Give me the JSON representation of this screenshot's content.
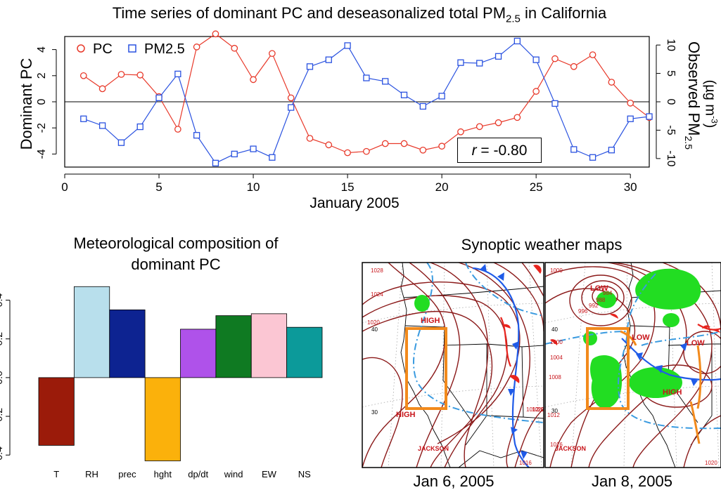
{
  "top_chart": {
    "title_main": "Time series of dominant PC and deseasonalized total PM",
    "title_sub": "2.5",
    "title_tail": " in California",
    "y_left_label": "Dominant PC",
    "y_right_label_main": "Observed PM",
    "y_right_label_sub": "2.5",
    "y_right_units": "(µg m",
    "y_right_units_sup": "-3",
    "y_right_units_close": ")",
    "xlabel": "January 2005",
    "legend": {
      "pc_label": "PC",
      "pm_label": "PM2.5"
    },
    "r_prefix": "r",
    "r_value": " = -0.80",
    "colors": {
      "pc": "#e8392a",
      "pm": "#2a52e0",
      "zero_line": "#000000"
    }
  },
  "bar_panel": {
    "title_line1": "Meteorological composition of",
    "title_line2": "dominant PC"
  },
  "maps": {
    "title": "Synoptic weather maps",
    "map1_caption": "Jan 6, 2005",
    "map2_caption": "Jan 8, 2005",
    "map1": {
      "labels": [
        "HIGH",
        "HIGH",
        "JACKSON",
        "1028",
        "1024",
        "1020",
        "40",
        "30",
        "1016",
        "1012",
        "1020",
        "1024"
      ],
      "label_keys": [
        "high_north",
        "high_south",
        "jackson",
        "i1028",
        "i1024",
        "i1020",
        "lat40",
        "lat30",
        "i1016",
        "e1012",
        "e1020",
        "e1024"
      ]
    },
    "map2": {
      "labels": [
        "LOW",
        "LOW",
        "LOW",
        "HIGH",
        "JACKSON",
        "1000",
        "984",
        "988",
        "992",
        "996",
        "1000",
        "1004",
        "1008",
        "1012",
        "1016",
        "1020",
        "40",
        "30"
      ],
      "label_keys": [
        "low_a",
        "low_b",
        "low_c",
        "high",
        "jackson",
        "i1000a",
        "i984",
        "i988",
        "i992",
        "i996",
        "i1000b",
        "i1004",
        "i1008",
        "i1012",
        "i1016",
        "i1020b",
        "lat40",
        "lat30"
      ]
    },
    "colors": {
      "isobar": "#8b1a1a",
      "front_blue": "#1f5be8",
      "front_red": "#e8241e",
      "trough": "#3a9be0",
      "precip": "#22dd22",
      "box": "#f28a1c",
      "label_red": "#c8141a"
    }
  },
  "chart_data": [
    {
      "type": "line",
      "title": "Time series of dominant PC and deseasonalized total PM2.5 in California",
      "xlabel": "January 2005",
      "ylabel": "Dominant PC",
      "ylabel_right": "Observed PM2.5 (µg m-3)",
      "x": [
        1,
        2,
        3,
        4,
        5,
        6,
        7,
        8,
        9,
        10,
        11,
        12,
        13,
        14,
        15,
        16,
        17,
        18,
        19,
        20,
        21,
        22,
        23,
        24,
        25,
        26,
        27,
        28,
        29,
        30,
        31
      ],
      "xlim": [
        0,
        31
      ],
      "xticks": [
        0,
        5,
        10,
        15,
        20,
        25,
        30
      ],
      "ylim_left": [
        -5,
        5
      ],
      "yticks_left": [
        -4,
        -2,
        0,
        2,
        4
      ],
      "ylim_right": [
        -11.5,
        11.5
      ],
      "yticks_right": [
        -10,
        -5,
        0,
        5,
        10
      ],
      "legend_position": "top-left",
      "annotation": "r = -0.80",
      "series": [
        {
          "name": "PC",
          "axis": "left",
          "marker": "circle",
          "color": "#e8392a",
          "values": [
            2.0,
            1.0,
            2.1,
            2.05,
            0.4,
            -2.1,
            4.2,
            5.2,
            4.1,
            1.7,
            3.7,
            0.3,
            -2.8,
            -3.3,
            -3.9,
            -3.8,
            -3.2,
            -3.2,
            -3.7,
            -3.4,
            -2.3,
            -1.9,
            -1.6,
            -1.2,
            0.8,
            3.3,
            2.7,
            3.6,
            1.5,
            -0.1,
            -1.2
          ]
        },
        {
          "name": "PM2.5",
          "axis": "right",
          "marker": "square",
          "color": "#2a52e0",
          "values": [
            -3.0,
            -4.2,
            -7.2,
            -4.4,
            0.7,
            4.9,
            -5.9,
            -10.8,
            -9.2,
            -8.3,
            -9.8,
            -1.0,
            6.2,
            7.4,
            9.9,
            4.2,
            3.6,
            1.2,
            -0.8,
            1.0,
            6.9,
            6.8,
            8.0,
            10.7,
            7.4,
            -0.3,
            -8.4,
            -9.8,
            -8.5,
            -3.0,
            -2.6
          ]
        }
      ]
    },
    {
      "type": "bar",
      "title": "Meteorological composition of dominant PC",
      "categories": [
        "T",
        "RH",
        "prec",
        "hght",
        "dp/dt",
        "wind",
        "EW",
        "NS"
      ],
      "values": [
        -0.35,
        0.47,
        0.35,
        -0.43,
        0.25,
        0.32,
        0.33,
        0.26
      ],
      "colors": [
        "#9b1b0a",
        "#b8dfec",
        "#0d2391",
        "#fbb10b",
        "#af52ea",
        "#0f7a22",
        "#fbc6d3",
        "#0c9a9a"
      ],
      "ylim": [
        -0.45,
        0.5
      ],
      "yticks": [
        -0.4,
        -0.2,
        0.0,
        0.2,
        0.4
      ]
    }
  ]
}
